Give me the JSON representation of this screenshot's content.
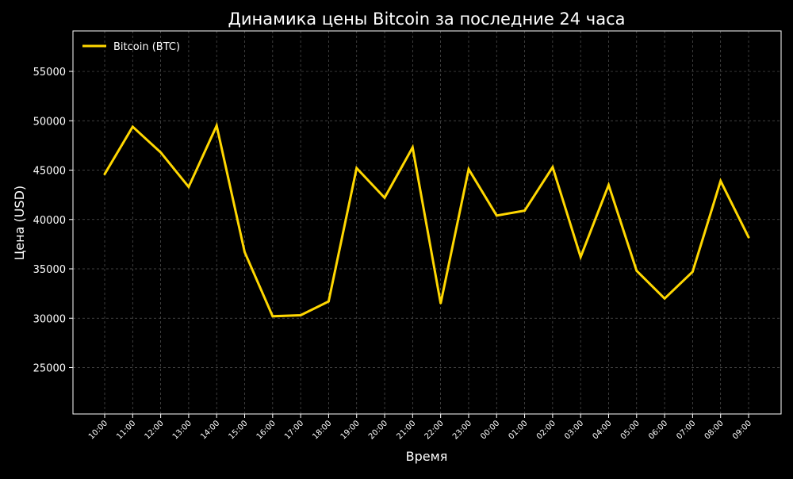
{
  "chart_data": {
    "type": "line",
    "title": "Динамика цены Bitcoin за последние 24 часа",
    "xlabel": "Время",
    "ylabel": "Цена (USD)",
    "ylim": [
      20300,
      59100
    ],
    "yticks": [
      25000,
      30000,
      35000,
      40000,
      45000,
      50000,
      55000
    ],
    "grid": true,
    "legend_position": "top-left",
    "categories": [
      "10:00",
      "11:00",
      "12:00",
      "13:00",
      "14:00",
      "15:00",
      "16:00",
      "17:00",
      "18:00",
      "19:00",
      "20:00",
      "21:00",
      "22:00",
      "23:00",
      "00:00",
      "01:00",
      "02:00",
      "03:00",
      "04:00",
      "05:00",
      "06:00",
      "07:00",
      "08:00",
      "09:00"
    ],
    "series": [
      {
        "name": "Bitcoin (BTC)",
        "color": "#FFD700",
        "values": [
          44600,
          49400,
          46800,
          43300,
          49500,
          36700,
          30200,
          30300,
          31700,
          45200,
          42200,
          47300,
          31500,
          45100,
          40400,
          40900,
          45300,
          36200,
          43500,
          34800,
          32000,
          34700,
          43900,
          38200
        ]
      }
    ],
    "colors": {
      "background": "#000000",
      "axes": "#ffffff",
      "grid": "#555555",
      "line": "#FFD700"
    }
  }
}
